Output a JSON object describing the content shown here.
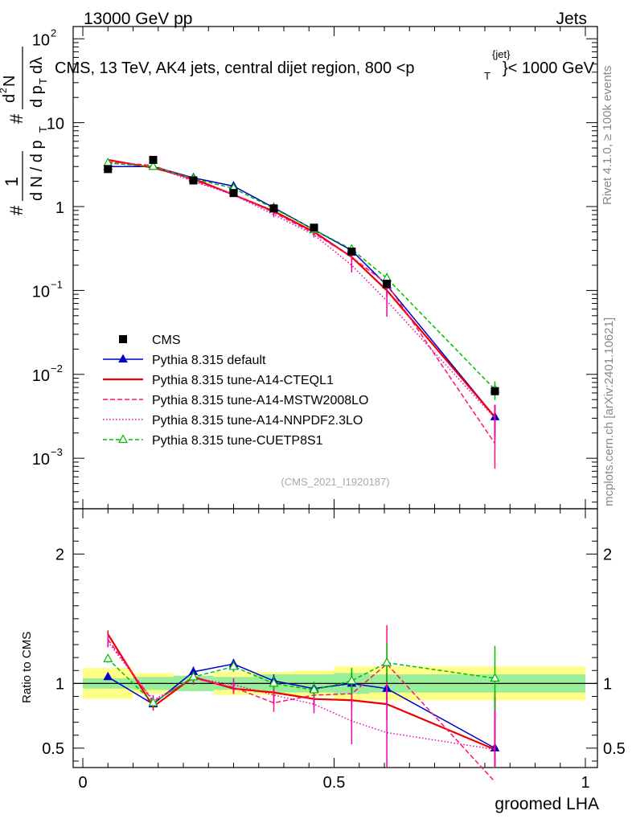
{
  "header": {
    "left": "13000 GeV pp",
    "right": "Jets"
  },
  "side_labels": {
    "rivet": "Rivet 4.1.0, ≥ 100k events",
    "mcplots": "mcplots.cern.ch [arXiv:2401.10621]"
  },
  "chart_data": {
    "type": "line",
    "title": "CMS, 13 TeV, AK4 jets, central dijet region, 800 <p_T^{jet}< 1000 GeV",
    "title_parts": {
      "main": "CMS, 13 TeV, AK4 jets, central dijet region, 800 <p",
      "sub": "T",
      "sup": "{jet}",
      "tail": "}< 1000 GeV"
    },
    "ylabel_top": {
      "prefix": "#",
      "frac1_num": "1",
      "frac1_den": "d N / d p",
      "frac1_den_sub": "T",
      "mid": "#",
      "frac2_num": "d",
      "frac2_num_sup": "2",
      "frac2_num_tail": "N",
      "frac2_den": "d p",
      "frac2_den_sub": "T",
      "frac2_den_tail": "dλ"
    },
    "xlabel": "groomed LHA",
    "ylabel_ratio": "Ratio to CMS",
    "analysis_tag": "(CMS_2021_I1920187)",
    "xlim": [
      0,
      1
    ],
    "ylim_top": [
      0.00025,
      140
    ],
    "ylim_ratio": [
      0.35,
      2.35
    ],
    "x_ticks": [
      {
        "value": 0,
        "label": "0"
      },
      {
        "value": 0.5,
        "label": "0.5"
      },
      {
        "value": 1,
        "label": "1"
      }
    ],
    "y_ticks_top": [
      {
        "value": 0.001,
        "base": "10",
        "exp": "−3"
      },
      {
        "value": 0.01,
        "base": "10",
        "exp": "−2"
      },
      {
        "value": 0.1,
        "base": "10",
        "exp": "−1"
      },
      {
        "value": 1,
        "base": "1",
        "exp": ""
      },
      {
        "value": 10,
        "base": "10",
        "exp": ""
      },
      {
        "value": 100,
        "base": "10",
        "exp": "2"
      }
    ],
    "y_ticks_ratio": [
      {
        "value": 0.5,
        "label": "0.5"
      },
      {
        "value": 1,
        "label": "1"
      },
      {
        "value": 2,
        "label": "2"
      }
    ],
    "bins": [
      {
        "lo": 0.0,
        "hi": 0.1,
        "x": 0.05
      },
      {
        "lo": 0.1,
        "hi": 0.18,
        "x": 0.14
      },
      {
        "lo": 0.18,
        "hi": 0.26,
        "x": 0.22
      },
      {
        "lo": 0.26,
        "hi": 0.34,
        "x": 0.3
      },
      {
        "lo": 0.34,
        "hi": 0.42,
        "x": 0.38
      },
      {
        "lo": 0.42,
        "hi": 0.5,
        "x": 0.46
      },
      {
        "lo": 0.5,
        "hi": 0.57,
        "x": 0.535
      },
      {
        "lo": 0.57,
        "hi": 0.64,
        "x": 0.605
      },
      {
        "lo": 0.64,
        "hi": 1.0,
        "x": 0.82
      }
    ],
    "cms": {
      "name": "CMS",
      "color": "#000000",
      "values": [
        2.8,
        3.6,
        2.05,
        1.45,
        0.95,
        0.56,
        0.29,
        0.12,
        0.0063
      ],
      "band_inner": [
        0.04,
        0.05,
        0.06,
        0.05,
        0.07,
        0.07,
        0.08,
        0.07,
        0.07
      ],
      "band_outer": [
        0.12,
        0.08,
        0.06,
        0.09,
        0.09,
        0.1,
        0.13,
        0.13,
        0.13
      ]
    },
    "series": [
      {
        "name": "Pythia 8.315 default",
        "color": "#0000cc",
        "dash": "",
        "marker": "triangle-filled",
        "values": [
          3.0,
          3.0,
          2.2,
          1.75,
          0.97,
          0.53,
          0.3,
          0.115,
          0.0031
        ],
        "ratio": [
          1.05,
          0.84,
          1.09,
          1.15,
          1.02,
          0.96,
          1.0,
          0.96,
          0.5
        ],
        "ratio_err": [
          0.02,
          0.02,
          0.04,
          0.04,
          0.05,
          0.05,
          0.09,
          0.12,
          0.4
        ]
      },
      {
        "name": "Pythia 8.315 tune-A14-CTEQL1",
        "color": "#ee0000",
        "dash": "",
        "marker": "none",
        "values": [
          3.6,
          2.9,
          2.15,
          1.38,
          0.88,
          0.5,
          0.25,
          0.1,
          0.0031
        ],
        "ratio": [
          1.38,
          0.82,
          1.05,
          0.96,
          0.93,
          0.88,
          0.87,
          0.84,
          0.49
        ],
        "ratio_err": [
          0.03,
          0.03,
          0.04,
          0.04,
          0.05,
          0.06,
          0.08,
          0.12,
          0.4
        ]
      },
      {
        "name": "Pythia 8.315 tune-A14-MSTW2008LO",
        "color": "#ff1177",
        "dash": "6,3",
        "marker": "none",
        "values": [
          3.4,
          3.1,
          2.05,
          1.4,
          0.85,
          0.48,
          0.25,
          0.12,
          0.0015
        ],
        "ratio": [
          1.34,
          0.86,
          1.04,
          0.97,
          0.85,
          0.91,
          0.92,
          1.15,
          0.24
        ],
        "ratio_err": [
          0.04,
          0.04,
          0.05,
          0.05,
          0.07,
          0.07,
          0.1,
          0.3,
          0.5
        ]
      },
      {
        "name": "Pythia 8.315 tune-A14-NNPDF2.3LO",
        "color": "#ee00aa",
        "dash": "1.5,2.5",
        "marker": "none",
        "values": [
          3.3,
          3.0,
          2.0,
          1.38,
          0.8,
          0.46,
          0.2,
          0.075,
          0.003
        ],
        "ratio": [
          1.32,
          0.87,
          1.04,
          0.99,
          0.91,
          0.84,
          0.71,
          0.62,
          0.49
        ],
        "ratio_err": [
          0.04,
          0.04,
          0.05,
          0.05,
          0.07,
          0.07,
          0.18,
          0.35,
          0.45
        ]
      },
      {
        "name": "Pythia 8.315 tune-CUETP8S1",
        "color": "#00bb00",
        "dash": "5,3",
        "marker": "triangle-open",
        "values": [
          3.3,
          3.0,
          2.15,
          1.65,
          0.95,
          0.53,
          0.31,
          0.14,
          0.0066
        ],
        "ratio": [
          1.19,
          0.85,
          1.05,
          1.13,
          1.0,
          0.95,
          1.02,
          1.16,
          1.04
        ],
        "ratio_err": [
          0.03,
          0.03,
          0.04,
          0.04,
          0.05,
          0.06,
          0.1,
          0.15,
          0.25
        ]
      }
    ]
  }
}
